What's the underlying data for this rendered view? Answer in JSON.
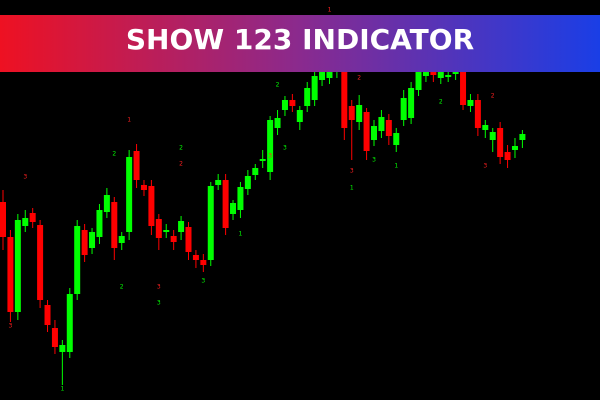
{
  "chart_data": {
    "type": "candlestick",
    "title": "SHOW 123 INDICATOR",
    "ylim": [
      0,
      400
    ],
    "up_color": "#00ff00",
    "down_color": "#ff0000",
    "open": [
      198,
      163,
      88,
      174,
      187,
      175,
      95,
      72,
      48,
      48,
      106,
      170,
      152,
      163,
      188,
      198,
      157,
      168,
      249,
      215,
      214,
      181,
      168,
      164,
      168,
      173,
      145,
      140,
      140,
      215,
      220,
      186,
      190,
      211,
      225,
      239,
      228,
      272,
      290,
      300,
      278,
      294,
      300,
      320,
      322,
      328,
      340,
      294,
      278,
      288,
      260,
      269,
      280,
      255,
      280,
      282,
      310,
      324,
      332,
      322,
      323,
      326,
      328,
      294,
      300,
      270,
      260,
      272,
      248,
      250,
      260
    ],
    "close": [
      163,
      88,
      180,
      182,
      178,
      100,
      75,
      53,
      55,
      106,
      174,
      145,
      168,
      190,
      205,
      152,
      164,
      243,
      220,
      210,
      174,
      162,
      170,
      158,
      179,
      148,
      140,
      135,
      214,
      220,
      172,
      197,
      213,
      224,
      232,
      241,
      280,
      282,
      300,
      294,
      290,
      312,
      324,
      330,
      330,
      332,
      272,
      280,
      295,
      249,
      274,
      283,
      264,
      267,
      302,
      312,
      330,
      330,
      325,
      330,
      325,
      330,
      295,
      300,
      272,
      275,
      268,
      243,
      240,
      254,
      266
    ],
    "high": [
      210,
      170,
      186,
      190,
      192,
      180,
      100,
      80,
      60,
      112,
      180,
      176,
      172,
      196,
      212,
      203,
      168,
      250,
      256,
      220,
      220,
      186,
      176,
      170,
      184,
      178,
      150,
      146,
      218,
      226,
      226,
      200,
      218,
      230,
      236,
      250,
      284,
      290,
      304,
      306,
      294,
      318,
      328,
      336,
      336,
      336,
      345,
      300,
      305,
      292,
      280,
      290,
      286,
      272,
      310,
      318,
      336,
      336,
      336,
      336,
      330,
      336,
      334,
      306,
      306,
      280,
      272,
      278,
      255,
      262,
      270
    ],
    "low": [
      150,
      78,
      80,
      168,
      172,
      92,
      68,
      46,
      15,
      42,
      100,
      138,
      146,
      156,
      182,
      140,
      150,
      160,
      212,
      204,
      165,
      150,
      162,
      150,
      160,
      140,
      132,
      128,
      134,
      210,
      165,
      180,
      182,
      205,
      220,
      232,
      220,
      265,
      284,
      288,
      270,
      288,
      294,
      314,
      316,
      322,
      260,
      240,
      270,
      240,
      254,
      262,
      255,
      248,
      274,
      276,
      304,
      318,
      318,
      316,
      318,
      320,
      290,
      288,
      264,
      262,
      248,
      236,
      232,
      242,
      252
    ],
    "signals": [
      {
        "candle": 3,
        "label": "3",
        "level": 223,
        "color": "#ff2020"
      },
      {
        "candle": 1,
        "label": "3",
        "level": 74,
        "color": "#ff2020"
      },
      {
        "candle": 8,
        "label": "1",
        "level": 11,
        "color": "#00ff00"
      },
      {
        "candle": 15,
        "label": "2",
        "level": 246,
        "color": "#00ff00"
      },
      {
        "candle": 17,
        "label": "1",
        "level": 280,
        "color": "#ff2020"
      },
      {
        "candle": 16,
        "label": "2",
        "level": 113,
        "color": "#00ff00"
      },
      {
        "candle": 24,
        "label": "2",
        "level": 252,
        "color": "#00ff00"
      },
      {
        "candle": 24,
        "label": "2",
        "level": 236,
        "color": "#ff2020"
      },
      {
        "candle": 21,
        "label": "3",
        "level": 113,
        "color": "#ff2020"
      },
      {
        "candle": 21,
        "label": "3",
        "level": 97,
        "color": "#00ff00"
      },
      {
        "candle": 27,
        "label": "3",
        "level": 119,
        "color": "#00ff00"
      },
      {
        "candle": 32,
        "label": "1",
        "level": 166,
        "color": "#00ff00"
      },
      {
        "candle": 36,
        "label": "3",
        "level": 244,
        "color": "#ff2020"
      },
      {
        "candle": 38,
        "label": "3",
        "level": 252,
        "color": "#00ff00"
      },
      {
        "candle": 37,
        "label": "2",
        "level": 315,
        "color": "#00ff00"
      },
      {
        "candle": 47,
        "label": "1",
        "level": 212,
        "color": "#00ff00"
      },
      {
        "candle": 47,
        "label": "3",
        "level": 229,
        "color": "#ff2020"
      },
      {
        "candle": 48,
        "label": "2",
        "level": 322,
        "color": "#ff2020"
      },
      {
        "candle": 50,
        "label": "3",
        "level": 240,
        "color": "#00ff00"
      },
      {
        "candle": 53,
        "label": "1",
        "level": 234,
        "color": "#00ff00"
      },
      {
        "candle": 59,
        "label": "2",
        "level": 298,
        "color": "#00ff00"
      },
      {
        "candle": 65,
        "label": "3",
        "level": 234,
        "color": "#ff2020"
      },
      {
        "candle": 66,
        "label": "2",
        "level": 304,
        "color": "#ff2020"
      },
      {
        "candle": 44,
        "label": "1",
        "level": 390,
        "color": "#ff2020"
      }
    ]
  }
}
